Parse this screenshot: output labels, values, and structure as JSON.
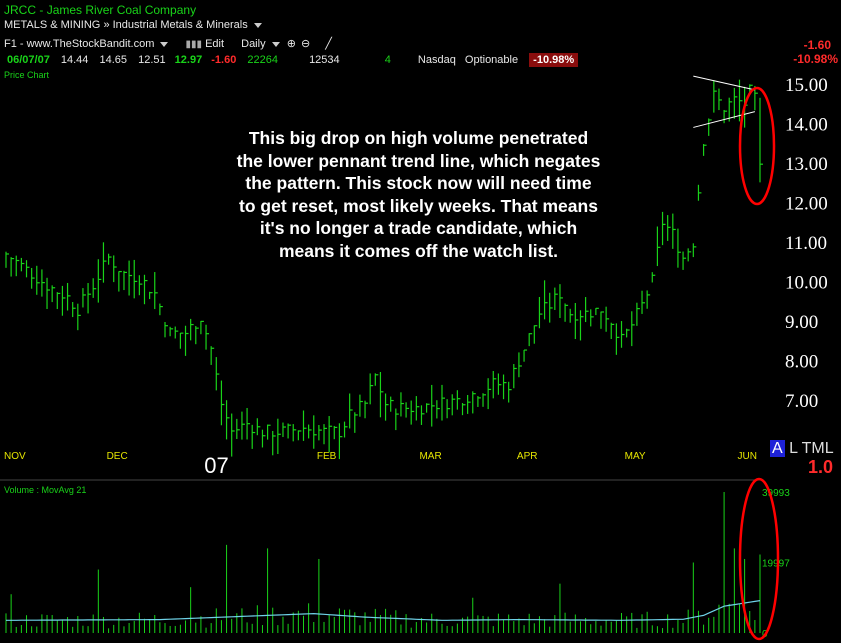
{
  "header": {
    "symbol": "JRCC",
    "company": "James River Coal Company",
    "sector": "METALS & MINING",
    "industry": "Industrial Metals & Minerals",
    "source": "F1 - www.TheStockBandit.com",
    "edit_label": "Edit",
    "interval": "Daily",
    "date": "06/07/07",
    "open": "14.44",
    "high": "14.65",
    "low": "12.51",
    "close": "12.97",
    "change": "-1.60",
    "volume": "22264",
    "avg_volume": "12534",
    "count": "4",
    "exchange": "Nasdaq",
    "options": "Optionable",
    "change_pct": "-10.98%",
    "right_change": "-1.60",
    "right_change_pct": "-10.98%"
  },
  "price_panel_label": "Price Chart",
  "volume_panel_label": "Volume : MovAvg 21",
  "annotation": [
    "This big drop on high volume penetrated",
    "the lower pennant trend line, which negates",
    "the pattern.  This stock now will need time",
    "to get reset, most likely weeks.  That means",
    "it's no longer a trade candidate, which",
    "means it comes off the watch list."
  ],
  "corner": {
    "a_label": "A",
    "l_label": "L",
    "tml_label": "TML",
    "value": "1.0"
  },
  "colors": {
    "bars": "#19d319",
    "ma_line": "#6fd3e8",
    "highlight": "#ff0000",
    "background": "#000000"
  },
  "chart_data": {
    "type": "bar",
    "description_series": "daily OHLC price bars (approximate, read from chart)",
    "y_ticks": [
      "15.00",
      "14.00",
      "13.00",
      "12.00",
      "11.00",
      "10.00",
      "9.00",
      "8.00",
      "7.00"
    ],
    "ylim": [
      6.2,
      15.4
    ],
    "x_labels": [
      {
        "label": "NOV",
        "idx": 0
      },
      {
        "label": "DEC",
        "idx": 20
      },
      {
        "label": "07",
        "idx": 41
      },
      {
        "label": "FEB",
        "idx": 61
      },
      {
        "label": "MAR",
        "idx": 81
      },
      {
        "label": "APR",
        "idx": 100
      },
      {
        "label": "MAY",
        "idx": 121
      },
      {
        "label": "JUN",
        "idx": 143
      }
    ],
    "price_anchors": [
      [
        0,
        10.7
      ],
      [
        4,
        10.3
      ],
      [
        8,
        9.9
      ],
      [
        12,
        9.6
      ],
      [
        14,
        9.3
      ],
      [
        17,
        9.9
      ],
      [
        20,
        10.6
      ],
      [
        23,
        10.2
      ],
      [
        26,
        10.1
      ],
      [
        29,
        9.7
      ],
      [
        32,
        8.7
      ],
      [
        35,
        8.7
      ],
      [
        38,
        9.1
      ],
      [
        40,
        8.3
      ],
      [
        42,
        6.9
      ],
      [
        44,
        6.2
      ],
      [
        47,
        6.4
      ],
      [
        50,
        6.2
      ],
      [
        54,
        6.2
      ],
      [
        58,
        6.3
      ],
      [
        62,
        6.2
      ],
      [
        65,
        6.2
      ],
      [
        67,
        6.6
      ],
      [
        70,
        6.9
      ],
      [
        72,
        7.6
      ],
      [
        74,
        6.9
      ],
      [
        76,
        6.8
      ],
      [
        80,
        6.8
      ],
      [
        84,
        6.9
      ],
      [
        88,
        7.0
      ],
      [
        92,
        7.2
      ],
      [
        95,
        7.4
      ],
      [
        98,
        7.4
      ],
      [
        100,
        8.0
      ],
      [
        102,
        8.6
      ],
      [
        104,
        9.2
      ],
      [
        106,
        9.4
      ],
      [
        108,
        9.7
      ],
      [
        110,
        9.2
      ],
      [
        113,
        9.2
      ],
      [
        116,
        9.3
      ],
      [
        118,
        9.0
      ],
      [
        120,
        8.5
      ],
      [
        122,
        8.9
      ],
      [
        124,
        9.4
      ],
      [
        126,
        10.0
      ],
      [
        128,
        11.5
      ],
      [
        130,
        11.2
      ],
      [
        132,
        10.6
      ],
      [
        134,
        11.0
      ],
      [
        136,
        13.6
      ],
      [
        138,
        14.7
      ],
      [
        140,
        14.4
      ],
      [
        142,
        14.6
      ],
      [
        144,
        14.5
      ],
      [
        145,
        14.8
      ],
      [
        146,
        14.6
      ],
      [
        147,
        12.97
      ]
    ],
    "volume_ticks": [
      "39993",
      "19997",
      "0"
    ],
    "volume_ylim": [
      0,
      39993
    ],
    "volume_spikes": [
      [
        1,
        11000
      ],
      [
        18,
        18000
      ],
      [
        36,
        13000
      ],
      [
        43,
        25000
      ],
      [
        51,
        24000
      ],
      [
        61,
        21000
      ],
      [
        91,
        10000
      ],
      [
        108,
        14000
      ],
      [
        134,
        20000
      ],
      [
        140,
        40000
      ],
      [
        142,
        24000
      ],
      [
        144,
        21000
      ],
      [
        147,
        22264
      ]
    ],
    "volume_ma_anchors": [
      [
        0,
        3600
      ],
      [
        30,
        3800
      ],
      [
        60,
        5500
      ],
      [
        70,
        4500
      ],
      [
        85,
        3600
      ],
      [
        100,
        3800
      ],
      [
        120,
        3600
      ],
      [
        132,
        3900
      ],
      [
        136,
        5000
      ],
      [
        140,
        7600
      ],
      [
        147,
        9200
      ]
    ],
    "pennant": {
      "upper": [
        [
          134,
          15.2
        ],
        [
          146,
          14.85
        ]
      ],
      "lower": [
        [
          134,
          13.9
        ],
        [
          146,
          14.3
        ]
      ]
    }
  }
}
